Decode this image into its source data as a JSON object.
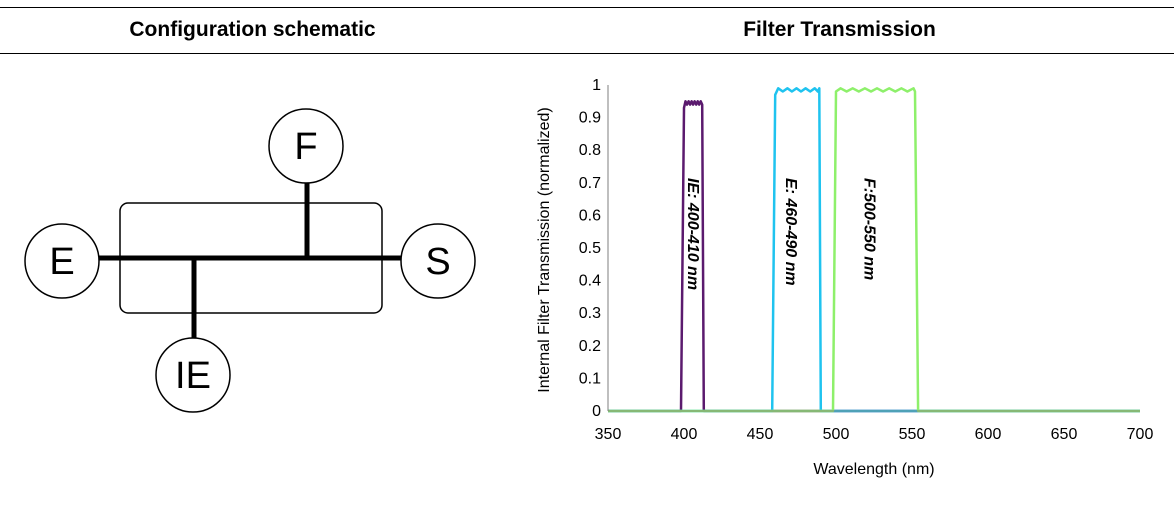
{
  "headers": {
    "left": "Configuration schematic",
    "right": "Filter Transmission"
  },
  "schematic": {
    "nodes": [
      {
        "id": "F",
        "label": "F"
      },
      {
        "id": "E",
        "label": "E"
      },
      {
        "id": "S",
        "label": "S"
      },
      {
        "id": "IE",
        "label": "IE"
      }
    ]
  },
  "chart_data": {
    "type": "line",
    "title": "",
    "xlabel": "Wavelength (nm)",
    "ylabel": "Internal Filter Transmission (normalized)",
    "xlim": [
      350,
      700
    ],
    "ylim": [
      0,
      1
    ],
    "x_ticks": [
      "350",
      "400",
      "450",
      "500",
      "550",
      "600",
      "650",
      "700"
    ],
    "y_ticks": [
      "0",
      "0.1",
      "0.2",
      "0.3",
      "0.4",
      "0.5",
      "0.6",
      "0.7",
      "0.8",
      "0.9",
      "1"
    ],
    "grid": false,
    "legend": "none",
    "series": [
      {
        "color": "#5b1a6e",
        "band_label": "IE: 400-410 nm",
        "x": [
          350,
          398,
          400,
          401,
          402,
          403,
          404,
          405,
          406,
          407,
          408,
          409,
          410,
          411,
          412,
          413,
          415,
          700
        ],
        "y": [
          0,
          0,
          0.93,
          0.95,
          0.94,
          0.95,
          0.94,
          0.95,
          0.94,
          0.95,
          0.94,
          0.95,
          0.94,
          0.95,
          0.94,
          0,
          0,
          0
        ]
      },
      {
        "color": "#1fc3ef",
        "band_label": "E: 460-490 nm",
        "x": [
          350,
          458,
          460,
          462,
          465,
          468,
          471,
          474,
          477,
          480,
          483,
          486,
          488,
          489,
          490,
          700
        ],
        "y": [
          0,
          0,
          0.97,
          0.99,
          0.98,
          0.99,
          0.98,
          0.99,
          0.98,
          0.99,
          0.98,
          0.99,
          0.98,
          0.99,
          0,
          0
        ]
      },
      {
        "color": "#8ef06b",
        "band_label": "F:500-550 nm",
        "x": [
          350,
          498,
          500,
          503,
          507,
          511,
          515,
          519,
          523,
          527,
          531,
          535,
          539,
          543,
          547,
          551,
          552,
          554,
          700
        ],
        "y": [
          0,
          0,
          0.98,
          0.99,
          0.98,
          0.99,
          0.98,
          0.99,
          0.98,
          0.99,
          0.98,
          0.99,
          0.98,
          0.99,
          0.98,
          0.99,
          0.98,
          0,
          0
        ]
      }
    ]
  }
}
